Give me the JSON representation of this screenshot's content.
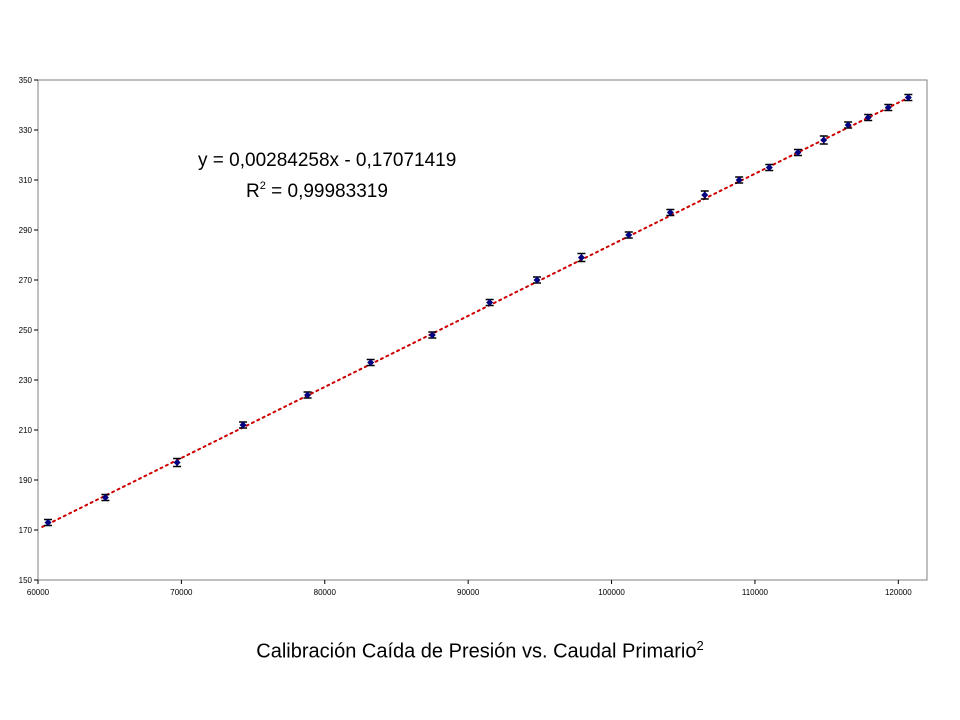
{
  "caption": {
    "text": "Calibración Caída de Presión vs. Caudal Primario",
    "superscript": "2"
  },
  "chart_data": {
    "type": "scatter",
    "title": "",
    "xlabel": "",
    "ylabel": "",
    "xlim": [
      60000,
      122000
    ],
    "ylim": [
      150,
      350
    ],
    "x_ticks": [
      60000,
      70000,
      80000,
      90000,
      100000,
      110000,
      120000
    ],
    "x_tick_labels": [
      "60000",
      "70000",
      "80000",
      "90000",
      "100000",
      "110000",
      "120000"
    ],
    "y_ticks": [
      150,
      170,
      190,
      210,
      230,
      250,
      270,
      290,
      310,
      330,
      350
    ],
    "y_tick_labels": [
      "150",
      "170",
      "190",
      "210",
      "230",
      "250",
      "270",
      "290",
      "310",
      "330",
      "350"
    ],
    "grid": false,
    "series": [
      {
        "x": [
          60700,
          64700,
          69700,
          74300,
          78800,
          83200,
          87500,
          91500,
          94800,
          97900,
          101200,
          104100,
          106500,
          108900,
          111000,
          113000,
          114800,
          116500,
          117900,
          119300,
          120700
        ],
        "y": [
          173,
          183,
          197,
          212,
          224,
          237,
          248,
          261,
          270,
          279,
          288,
          297,
          304,
          310,
          315,
          321,
          326,
          332,
          335,
          339,
          343
        ],
        "error": [
          1.2,
          1.2,
          1.6,
          1.2,
          1.2,
          1.2,
          1.2,
          1.2,
          1.2,
          1.6,
          1.2,
          1.2,
          1.6,
          1.2,
          1.2,
          1.2,
          1.6,
          1.2,
          1.2,
          1.2,
          1.2
        ],
        "marker_color": "#000080",
        "errorbar_color": "#000000"
      }
    ],
    "trendline": {
      "slope": 0.00284258,
      "intercept": -0.17071419,
      "color": "#cc0000",
      "style": "dotted",
      "equation_text": "y = 0,00284258x - 0,17071419",
      "r2_label": "R",
      "r2_superscript": "2",
      "r2_value_text": " = 0,99983319"
    }
  }
}
